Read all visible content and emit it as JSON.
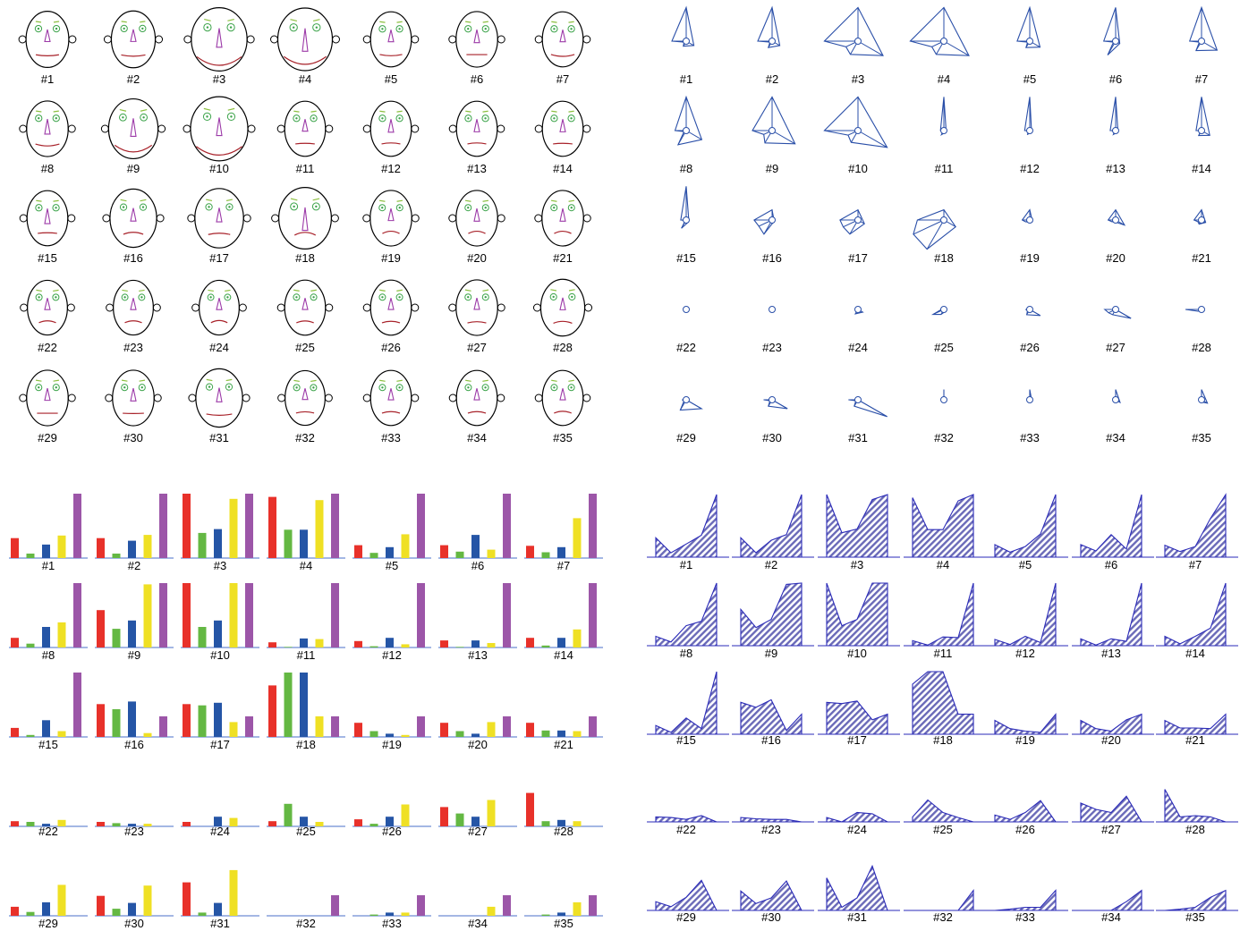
{
  "labels": [
    "#1",
    "#2",
    "#3",
    "#4",
    "#5",
    "#6",
    "#7",
    "#8",
    "#9",
    "#10",
    "#11",
    "#12",
    "#13",
    "#14",
    "#15",
    "#16",
    "#17",
    "#18",
    "#19",
    "#20",
    "#21",
    "#22",
    "#23",
    "#24",
    "#25",
    "#26",
    "#27",
    "#28",
    "#29",
    "#30",
    "#31",
    "#32",
    "#33",
    "#34",
    "#35"
  ],
  "colors": {
    "bar_series": [
      "#e8312a",
      "#64b843",
      "#2555a6",
      "#efe024",
      "#9c56a8"
    ],
    "star": "#2a4fa8",
    "area": "#2a2ab8",
    "face_eyes": "#3ca34a",
    "face_nose": "#9c3aa8",
    "face_mouth": "#a8222a",
    "face_brows": "#8cbf3f"
  },
  "chart_data": [
    {
      "type": "chernoff_faces",
      "comment_fields": [
        "face_size",
        "eye_size",
        "nose_length",
        "mouth_curve",
        "brow_tilt"
      ],
      "values": [
        [
          0.45,
          0.45,
          0.25,
          0.38,
          0.28
        ],
        [
          0.48,
          0.45,
          0.25,
          0.4,
          0.28
        ],
        [
          0.78,
          0.65,
          0.6,
          0.9,
          0.6
        ],
        [
          0.75,
          0.65,
          0.8,
          0.85,
          0.6
        ],
        [
          0.4,
          0.45,
          0.25,
          0.4,
          0.3
        ],
        [
          0.42,
          0.45,
          0.3,
          0.3,
          0.3
        ],
        [
          0.4,
          0.45,
          0.25,
          0.45,
          0.3
        ],
        [
          0.42,
          0.45,
          0.4,
          0.45,
          0.3
        ],
        [
          0.62,
          0.55,
          0.55,
          0.8,
          0.55
        ],
        [
          0.82,
          0.65,
          0.55,
          0.9,
          0.6
        ],
        [
          0.4,
          0.45,
          0.25,
          0.25,
          0.3
        ],
        [
          0.4,
          0.45,
          0.3,
          0.22,
          0.3
        ],
        [
          0.4,
          0.45,
          0.28,
          0.22,
          0.3
        ],
        [
          0.4,
          0.45,
          0.28,
          0.25,
          0.3
        ],
        [
          0.4,
          0.45,
          0.4,
          0.25,
          0.3
        ],
        [
          0.55,
          0.45,
          0.3,
          0.15,
          0.45
        ],
        [
          0.6,
          0.45,
          0.35,
          0.2,
          0.45
        ],
        [
          0.7,
          0.6,
          0.8,
          0.1,
          0.6
        ],
        [
          0.42,
          0.4,
          0.25,
          0.12,
          0.35
        ],
        [
          0.42,
          0.4,
          0.28,
          0.12,
          0.35
        ],
        [
          0.42,
          0.4,
          0.28,
          0.12,
          0.35
        ],
        [
          0.38,
          0.4,
          0.22,
          0.15,
          0.35
        ],
        [
          0.38,
          0.38,
          0.22,
          0.15,
          0.35
        ],
        [
          0.38,
          0.38,
          0.22,
          0.12,
          0.35
        ],
        [
          0.4,
          0.4,
          0.22,
          0.15,
          0.38
        ],
        [
          0.4,
          0.4,
          0.22,
          0.18,
          0.38
        ],
        [
          0.42,
          0.4,
          0.22,
          0.2,
          0.4
        ],
        [
          0.48,
          0.42,
          0.25,
          0.15,
          0.4
        ],
        [
          0.42,
          0.42,
          0.25,
          0.3,
          0.35
        ],
        [
          0.42,
          0.42,
          0.28,
          0.32,
          0.35
        ],
        [
          0.55,
          0.45,
          0.35,
          0.4,
          0.4
        ],
        [
          0.38,
          0.4,
          0.2,
          0.2,
          0.35
        ],
        [
          0.4,
          0.4,
          0.22,
          0.18,
          0.35
        ],
        [
          0.4,
          0.4,
          0.22,
          0.18,
          0.35
        ],
        [
          0.4,
          0.4,
          0.22,
          0.15,
          0.35
        ]
      ]
    },
    {
      "type": "star",
      "comment_order": "angles (deg): 180, 205, 240, 330, 90",
      "values": [
        [
          0.42,
          0.07,
          0.17,
          0.26,
          0.99
        ],
        [
          0.42,
          0.07,
          0.22,
          0.26,
          0.99
        ],
        [
          0.99,
          0.39,
          0.45,
          0.85,
          0.99
        ],
        [
          0.99,
          0.39,
          0.45,
          0.85,
          0.99
        ],
        [
          0.37,
          0.07,
          0.22,
          0.35,
          0.99
        ],
        [
          0.35,
          0.07,
          0.47,
          0.14,
          0.99
        ],
        [
          0.35,
          0.07,
          0.32,
          0.53,
          0.99
        ],
        [
          0.33,
          0.07,
          0.48,
          0.53,
          0.99
        ],
        [
          0.58,
          0.27,
          0.42,
          0.78,
          0.99
        ],
        [
          0.99,
          0.32,
          0.4,
          0.99,
          0.99
        ],
        [
          0.1,
          0.02,
          0.14,
          0.08,
          0.99
        ],
        [
          0.15,
          0.02,
          0.14,
          0.06,
          0.99
        ],
        [
          0.16,
          0.02,
          0.13,
          0.08,
          0.99
        ],
        [
          0.16,
          0.02,
          0.17,
          0.28,
          0.99
        ],
        [
          0.16,
          0.03,
          0.28,
          0.09,
          0.99
        ],
        [
          0.53,
          0.43,
          0.48,
          0.07,
          0.3
        ],
        [
          0.53,
          0.48,
          0.48,
          0.22,
          0.3
        ],
        [
          0.78,
          0.99,
          0.99,
          0.4,
          0.3
        ],
        [
          0.22,
          0.13,
          0.06,
          0.09,
          0.3
        ],
        [
          0.22,
          0.12,
          0.06,
          0.3,
          0.3
        ],
        [
          0.22,
          0.12,
          0.14,
          0.14,
          0.3
        ],
        [
          0.08,
          0.06,
          0.03,
          0.08,
          0.0
        ],
        [
          0.07,
          0.04,
          0.04,
          0.04,
          0.0
        ],
        [
          0.07,
          0.0,
          0.15,
          0.16,
          0.0
        ],
        [
          0.07,
          0.35,
          0.17,
          0.08,
          0.0
        ],
        [
          0.12,
          0.07,
          0.18,
          0.36,
          0.0
        ],
        [
          0.32,
          0.23,
          0.18,
          0.52,
          0.0
        ],
        [
          0.47,
          0.12,
          0.05,
          0.07,
          0.0
        ],
        [
          0.12,
          0.07,
          0.35,
          0.52,
          0.0
        ],
        [
          0.25,
          0.07,
          0.22,
          0.52,
          0.0
        ],
        [
          0.28,
          0.07,
          0.22,
          0.99,
          0.0
        ],
        [
          0.0,
          0.0,
          0.0,
          0.0,
          0.3
        ],
        [
          0.0,
          0.02,
          0.05,
          0.07,
          0.3
        ],
        [
          0.0,
          0.0,
          0.0,
          0.15,
          0.3
        ],
        [
          0.0,
          0.03,
          0.07,
          0.2,
          0.3
        ]
      ]
    },
    {
      "type": "bar",
      "series_count": 5,
      "ylim": [
        0,
        1
      ],
      "values": [
        [
          0.31,
          0.07,
          0.21,
          0.35,
          1.0
        ],
        [
          0.31,
          0.07,
          0.27,
          0.36,
          1.0
        ],
        [
          1.0,
          0.39,
          0.45,
          0.92,
          1.0
        ],
        [
          0.95,
          0.44,
          0.44,
          0.9,
          1.0
        ],
        [
          0.2,
          0.08,
          0.17,
          0.37,
          1.0
        ],
        [
          0.2,
          0.1,
          0.36,
          0.13,
          1.0
        ],
        [
          0.19,
          0.09,
          0.17,
          0.62,
          1.0
        ],
        [
          0.15,
          0.06,
          0.32,
          0.39,
          1.0
        ],
        [
          0.58,
          0.29,
          0.42,
          0.98,
          1.0
        ],
        [
          1.0,
          0.32,
          0.42,
          1.0,
          1.0
        ],
        [
          0.08,
          0.01,
          0.14,
          0.13,
          1.0
        ],
        [
          0.1,
          0.02,
          0.15,
          0.05,
          1.0
        ],
        [
          0.11,
          0.01,
          0.11,
          0.07,
          1.0
        ],
        [
          0.15,
          0.03,
          0.15,
          0.28,
          1.0
        ],
        [
          0.14,
          0.03,
          0.26,
          0.09,
          1.0
        ],
        [
          0.51,
          0.43,
          0.55,
          0.06,
          0.32
        ],
        [
          0.51,
          0.49,
          0.53,
          0.23,
          0.32
        ],
        [
          0.8,
          1.0,
          1.0,
          0.32,
          0.32
        ],
        [
          0.22,
          0.09,
          0.05,
          0.03,
          0.32
        ],
        [
          0.22,
          0.09,
          0.05,
          0.23,
          0.32
        ],
        [
          0.22,
          0.1,
          0.1,
          0.09,
          0.32
        ],
        [
          0.08,
          0.07,
          0.04,
          0.1,
          0.0
        ],
        [
          0.07,
          0.05,
          0.04,
          0.04,
          0.0
        ],
        [
          0.07,
          0.0,
          0.15,
          0.13,
          0.0
        ],
        [
          0.08,
          0.35,
          0.15,
          0.07,
          0.0
        ],
        [
          0.11,
          0.04,
          0.15,
          0.34,
          0.0
        ],
        [
          0.3,
          0.2,
          0.15,
          0.41,
          0.0
        ],
        [
          0.52,
          0.08,
          0.1,
          0.08,
          0.0
        ],
        [
          0.14,
          0.06,
          0.21,
          0.48,
          0.0
        ],
        [
          0.31,
          0.11,
          0.2,
          0.47,
          0.0
        ],
        [
          0.52,
          0.05,
          0.2,
          0.71,
          0.0
        ],
        [
          0.0,
          0.0,
          0.0,
          0.0,
          0.32
        ],
        [
          0.0,
          0.02,
          0.05,
          0.05,
          0.32
        ],
        [
          0.0,
          0.0,
          0.0,
          0.14,
          0.32
        ],
        [
          0.0,
          0.02,
          0.05,
          0.21,
          0.32
        ]
      ]
    },
    {
      "type": "area",
      "ylim": [
        0,
        1
      ],
      "values": [
        [
          0.31,
          0.07,
          0.21,
          0.35,
          1.0
        ],
        [
          0.31,
          0.07,
          0.27,
          0.36,
          1.0
        ],
        [
          1.0,
          0.39,
          0.45,
          0.92,
          1.0
        ],
        [
          0.95,
          0.44,
          0.44,
          0.9,
          1.0
        ],
        [
          0.2,
          0.08,
          0.17,
          0.37,
          1.0
        ],
        [
          0.2,
          0.1,
          0.36,
          0.13,
          1.0
        ],
        [
          0.19,
          0.09,
          0.17,
          0.62,
          1.0
        ],
        [
          0.15,
          0.06,
          0.32,
          0.39,
          1.0
        ],
        [
          0.58,
          0.29,
          0.42,
          0.98,
          1.0
        ],
        [
          1.0,
          0.32,
          0.42,
          1.0,
          1.0
        ],
        [
          0.08,
          0.01,
          0.14,
          0.13,
          1.0
        ],
        [
          0.1,
          0.02,
          0.15,
          0.05,
          1.0
        ],
        [
          0.11,
          0.01,
          0.11,
          0.07,
          1.0
        ],
        [
          0.15,
          0.03,
          0.15,
          0.28,
          1.0
        ],
        [
          0.14,
          0.03,
          0.26,
          0.09,
          1.0
        ],
        [
          0.51,
          0.43,
          0.55,
          0.06,
          0.32
        ],
        [
          0.51,
          0.49,
          0.53,
          0.23,
          0.32
        ],
        [
          0.8,
          1.0,
          1.0,
          0.32,
          0.32
        ],
        [
          0.22,
          0.09,
          0.05,
          0.03,
          0.32
        ],
        [
          0.22,
          0.09,
          0.05,
          0.23,
          0.32
        ],
        [
          0.22,
          0.1,
          0.1,
          0.09,
          0.32
        ],
        [
          0.08,
          0.07,
          0.04,
          0.1,
          0.0
        ],
        [
          0.07,
          0.05,
          0.04,
          0.04,
          0.0
        ],
        [
          0.07,
          0.0,
          0.15,
          0.13,
          0.0
        ],
        [
          0.08,
          0.35,
          0.15,
          0.07,
          0.0
        ],
        [
          0.11,
          0.04,
          0.15,
          0.34,
          0.0
        ],
        [
          0.3,
          0.2,
          0.15,
          0.41,
          0.0
        ],
        [
          0.52,
          0.08,
          0.1,
          0.08,
          0.0
        ],
        [
          0.14,
          0.06,
          0.21,
          0.48,
          0.0
        ],
        [
          0.31,
          0.11,
          0.2,
          0.47,
          0.0
        ],
        [
          0.52,
          0.05,
          0.2,
          0.71,
          0.0
        ],
        [
          0.0,
          0.0,
          0.0,
          0.0,
          0.32
        ],
        [
          0.0,
          0.02,
          0.05,
          0.05,
          0.32
        ],
        [
          0.0,
          0.0,
          0.0,
          0.14,
          0.32
        ],
        [
          0.0,
          0.02,
          0.05,
          0.21,
          0.32
        ]
      ]
    }
  ]
}
